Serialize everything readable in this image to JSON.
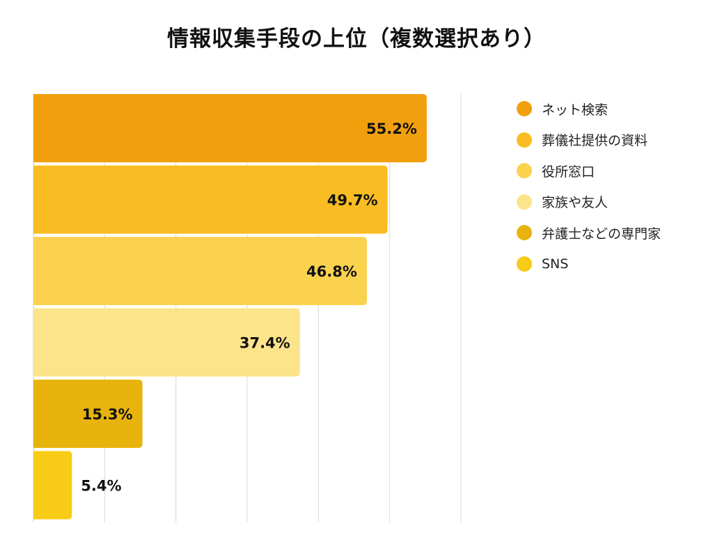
{
  "chart_data": {
    "type": "bar",
    "orientation": "horizontal",
    "title": "情報収集手段の上位（複数選択あり）",
    "xlabel": "",
    "ylabel": "",
    "xlim": [
      0,
      60
    ],
    "grid": true,
    "legend_position": "right",
    "categories": [
      "ネット検索",
      "葬儀社提供の資料",
      "役所窓口",
      "家族や友人",
      "弁護士などの専門家",
      "SNS"
    ],
    "values": [
      55.2,
      49.7,
      46.8,
      37.4,
      15.3,
      5.4
    ],
    "value_labels": [
      "55.2%",
      "49.7%",
      "46.8%",
      "37.4%",
      "15.3%",
      "5.4%"
    ],
    "colors": [
      "#F29F0E",
      "#F9BD23",
      "#FBD24E",
      "#FCE48A",
      "#E8B30C",
      "#F7CB16"
    ]
  }
}
